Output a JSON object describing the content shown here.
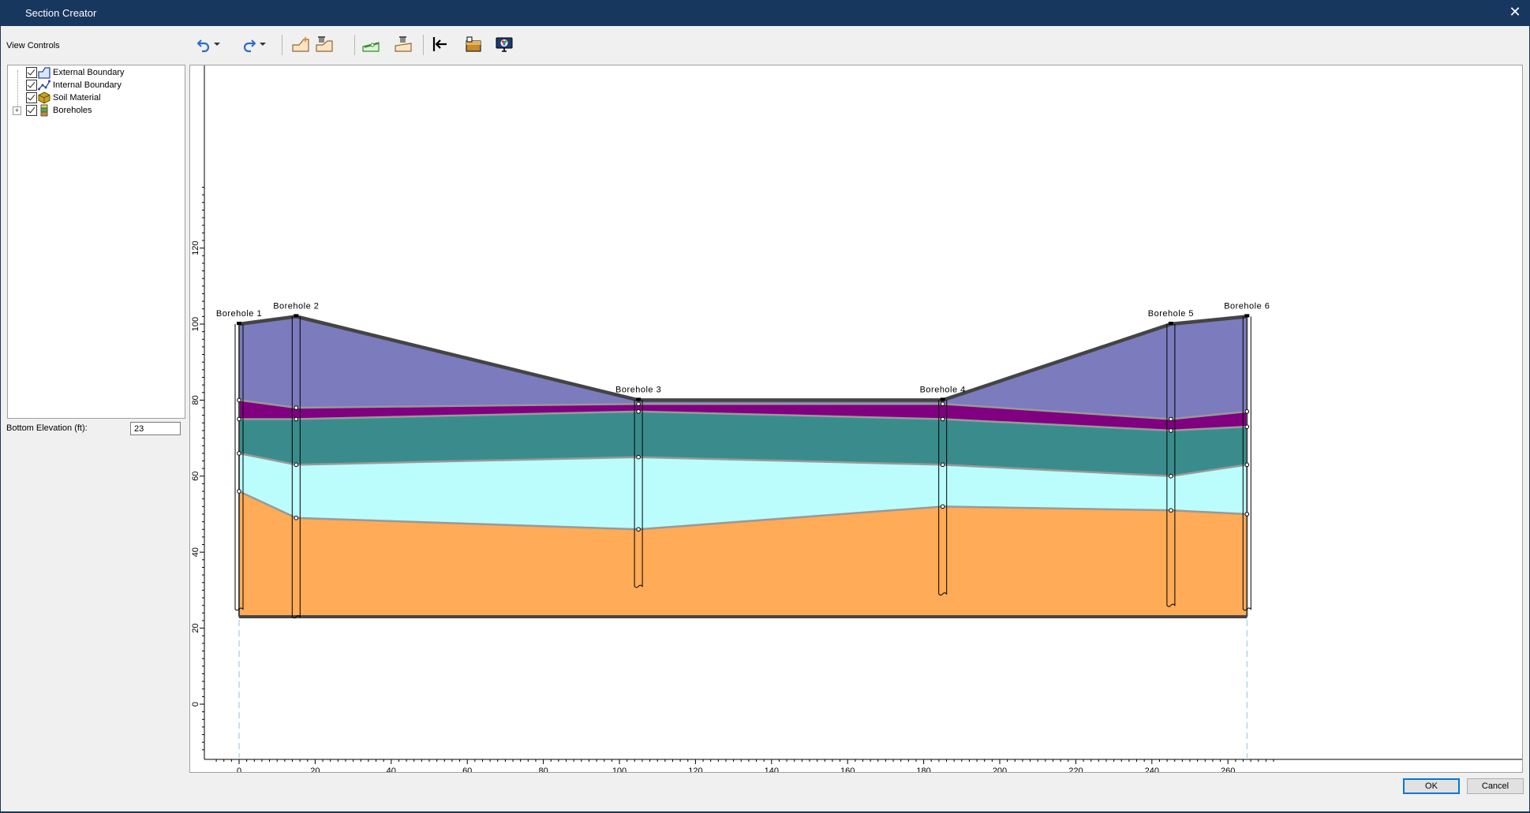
{
  "window": {
    "title": "Section Creator",
    "close_glyph": "✕"
  },
  "view_controls_label": "View Controls",
  "toolbar": {
    "buttons": [
      {
        "icon": "undo-icon",
        "label": "Undo"
      },
      {
        "icon": "undo-dropdown-icon"
      },
      {
        "icon": "redo-icon",
        "label": "Redo"
      },
      {
        "icon": "redo-dropdown-icon"
      },
      {
        "icon": "add-boundary-icon"
      },
      {
        "icon": "delete-boundary-icon"
      },
      {
        "icon": "add-internal-boundary-icon"
      },
      {
        "icon": "delete-internal-boundary-icon"
      },
      {
        "icon": "import-icon"
      },
      {
        "icon": "material-properties-icon"
      },
      {
        "icon": "display-options-icon"
      }
    ]
  },
  "tree": {
    "items": [
      {
        "label": "External Boundary",
        "checked": true,
        "icon": "external-boundary-icon"
      },
      {
        "label": "Internal Boundary",
        "checked": true,
        "icon": "internal-boundary-icon"
      },
      {
        "label": "Soil Material",
        "checked": true,
        "icon": "soil-material-icon"
      },
      {
        "label": "Boreholes",
        "checked": true,
        "icon": "boreholes-icon",
        "expandable": true,
        "expander": "+"
      }
    ]
  },
  "bottom_elevation": {
    "label": "Bottom Elevation (ft):",
    "value": "23"
  },
  "buttons": {
    "ok": "OK",
    "cancel": "Cancel"
  },
  "colors": {
    "layer1": "#7b7bbd",
    "layer2": "#800080",
    "layer3": "#3a8c8c",
    "layer4": "#bbfdfd",
    "layer5": "#ffab57",
    "boundary": "#444444",
    "internal_line": "#999999"
  },
  "chart_data": {
    "type": "area",
    "xlim": [
      -7,
      273
    ],
    "ylim": [
      -10,
      137
    ],
    "x_ticks": [
      "0",
      "20",
      "40",
      "60",
      "80",
      "100",
      "120",
      "140",
      "160",
      "180",
      "200",
      "220",
      "240",
      "260"
    ],
    "y_ticks": [
      "0",
      "20",
      "40",
      "60",
      "80",
      "100",
      "120"
    ],
    "bottom_elevation": 23,
    "boreholes": [
      {
        "name": "Borehole 1",
        "x": 0,
        "top": 100,
        "bottom": 25
      },
      {
        "name": "Borehole 2",
        "x": 15,
        "top": 102,
        "bottom": 23
      },
      {
        "name": "Borehole 3",
        "x": 105,
        "top": 80,
        "bottom": 31
      },
      {
        "name": "Borehole 4",
        "x": 185,
        "top": 80,
        "bottom": 29
      },
      {
        "name": "Borehole 5",
        "x": 245,
        "top": 100,
        "bottom": 26
      },
      {
        "name": "Borehole 6",
        "x": 265,
        "top": 102,
        "bottom": 25
      }
    ],
    "surfaces": {
      "x": [
        0,
        15,
        105,
        185,
        245,
        265
      ],
      "ground": [
        100,
        102,
        80,
        80,
        100,
        102
      ],
      "s1": [
        80,
        78,
        79,
        79,
        75,
        77
      ],
      "s2": [
        75,
        75,
        77,
        75,
        72,
        73
      ],
      "s3": [
        66,
        63,
        65,
        63,
        60,
        63
      ],
      "s4": [
        56,
        49,
        46,
        52,
        51,
        50
      ]
    }
  }
}
